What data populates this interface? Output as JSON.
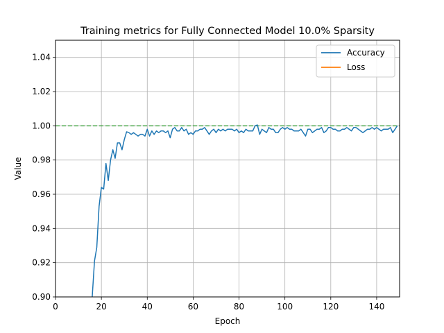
{
  "chart_data": {
    "type": "line",
    "title": "Training metrics for Fully Connected Model 10.0% Sparsity",
    "xlabel": "Epoch",
    "ylabel": "Value",
    "xlim": [
      0,
      150
    ],
    "ylim": [
      0.9,
      1.05
    ],
    "grid": true,
    "legend_position": "top-right",
    "x_ticks": [
      "0",
      "20",
      "40",
      "60",
      "80",
      "100",
      "120",
      "140"
    ],
    "y_ticks": [
      "0.90",
      "0.92",
      "0.94",
      "0.96",
      "0.98",
      "1.00",
      "1.02",
      "1.04"
    ],
    "reference_line": {
      "y": 1.0,
      "style": "dashed",
      "color": "#2ca02c"
    },
    "series": [
      {
        "name": "Accuracy",
        "color": "#1f77b4",
        "x": [
          16,
          17,
          18,
          19,
          20,
          21,
          22,
          23,
          24,
          25,
          26,
          27,
          28,
          29,
          30,
          31,
          32,
          33,
          34,
          35,
          36,
          37,
          38,
          39,
          40,
          41,
          42,
          43,
          44,
          45,
          46,
          47,
          48,
          49,
          50,
          51,
          52,
          53,
          54,
          55,
          56,
          57,
          58,
          59,
          60,
          61,
          62,
          63,
          64,
          65,
          66,
          67,
          68,
          69,
          70,
          71,
          72,
          73,
          74,
          75,
          76,
          77,
          78,
          79,
          80,
          81,
          82,
          83,
          84,
          85,
          86,
          87,
          88,
          89,
          90,
          91,
          92,
          93,
          94,
          95,
          96,
          97,
          98,
          99,
          100,
          101,
          102,
          103,
          104,
          105,
          106,
          107,
          108,
          109,
          110,
          111,
          112,
          113,
          114,
          115,
          116,
          117,
          118,
          119,
          120,
          121,
          122,
          123,
          124,
          125,
          126,
          127,
          128,
          129,
          130,
          131,
          132,
          133,
          134,
          135,
          136,
          137,
          138,
          139,
          140,
          141,
          142,
          143,
          144,
          145,
          146,
          147,
          148,
          149
        ],
        "values": [
          0.9,
          0.921,
          0.929,
          0.953,
          0.964,
          0.963,
          0.978,
          0.968,
          0.98,
          0.986,
          0.981,
          0.99,
          0.99,
          0.986,
          0.992,
          0.9965,
          0.996,
          0.995,
          0.996,
          0.995,
          0.994,
          0.995,
          0.995,
          0.994,
          0.998,
          0.994,
          0.997,
          0.995,
          0.997,
          0.996,
          0.997,
          0.997,
          0.996,
          0.997,
          0.993,
          0.998,
          0.999,
          0.997,
          0.997,
          0.999,
          0.997,
          0.998,
          0.995,
          0.996,
          0.995,
          0.997,
          0.997,
          0.998,
          0.998,
          0.999,
          0.997,
          0.995,
          0.997,
          0.998,
          0.996,
          0.998,
          0.997,
          0.998,
          0.997,
          0.998,
          0.998,
          0.998,
          0.997,
          0.998,
          0.996,
          0.997,
          0.996,
          0.998,
          0.997,
          0.997,
          0.997,
          1.0,
          1.0005,
          0.995,
          0.998,
          0.997,
          0.996,
          0.999,
          0.998,
          0.998,
          0.996,
          0.996,
          0.998,
          0.999,
          0.998,
          0.999,
          0.998,
          0.998,
          0.997,
          0.997,
          0.997,
          0.998,
          0.996,
          0.994,
          0.998,
          0.998,
          0.996,
          0.997,
          0.998,
          0.998,
          0.999,
          0.996,
          0.997,
          0.999,
          0.999,
          0.998,
          0.998,
          0.997,
          0.997,
          0.998,
          0.998,
          0.999,
          0.998,
          0.997,
          0.999,
          0.999,
          0.998,
          0.997,
          0.996,
          0.997,
          0.998,
          0.998,
          0.999,
          0.998,
          0.999,
          0.998,
          0.997,
          0.998,
          0.998,
          0.998,
          0.999,
          0.996,
          0.998,
          1.0
        ]
      },
      {
        "name": "Loss",
        "color": "#ff7f0e",
        "x": [],
        "values": []
      }
    ]
  }
}
